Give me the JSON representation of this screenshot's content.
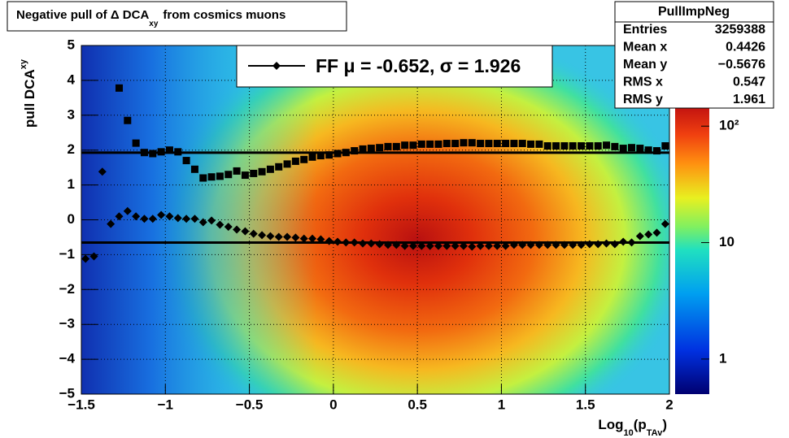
{
  "chart_data": {
    "type": "scatter",
    "title": {
      "text": "Negative pull of Δ DCA",
      "sub": "xy",
      "rest": "from cosmics muons"
    },
    "ylabel": {
      "text": "pull DCA",
      "sub": "xy"
    },
    "xlabel": [
      "Log",
      "10",
      "(p",
      "TAv",
      ")"
    ],
    "xlim": [
      -1.5,
      2
    ],
    "ylim": [
      -5,
      5
    ],
    "zlim": [
      0.5,
      150
    ],
    "zlog": true,
    "grid": true,
    "xticks": [
      {
        "value": -1.5,
        "label": "−1.5"
      },
      {
        "value": -1,
        "label": "−1"
      },
      {
        "value": -0.5,
        "label": "−0.5"
      },
      0,
      0.5,
      1,
      1.5,
      2
    ],
    "yticks": [
      {
        "value": -5,
        "label": "−5"
      },
      {
        "value": -4,
        "label": "−4"
      },
      {
        "value": -3,
        "label": "−3"
      },
      {
        "value": -2,
        "label": "−2"
      },
      {
        "value": -1,
        "label": "−1"
      },
      0,
      1,
      2,
      3,
      4,
      5
    ],
    "zticks": [
      1,
      10,
      {
        "value": 100,
        "label": "10²"
      }
    ],
    "x": [
      -1.475,
      -1.425,
      -1.375,
      -1.325,
      -1.275,
      -1.225,
      -1.175,
      -1.125,
      -1.075,
      -1.025,
      -0.975,
      -0.925,
      -0.875,
      -0.825,
      -0.775,
      -0.725,
      -0.675,
      -0.625,
      -0.575,
      -0.525,
      -0.475,
      -0.425,
      -0.375,
      -0.325,
      -0.275,
      -0.225,
      -0.175,
      -0.125,
      -0.075,
      -0.025,
      0.025,
      0.075,
      0.125,
      0.175,
      0.225,
      0.275,
      0.325,
      0.375,
      0.425,
      0.475,
      0.525,
      0.575,
      0.625,
      0.675,
      0.725,
      0.775,
      0.825,
      0.875,
      0.925,
      0.975,
      1.025,
      1.075,
      1.125,
      1.175,
      1.225,
      1.275,
      1.325,
      1.375,
      1.425,
      1.475,
      1.525,
      1.575,
      1.625,
      1.675,
      1.725,
      1.775,
      1.825,
      1.875,
      1.925,
      1.975
    ],
    "series": [
      {
        "marker": "square",
        "color": "#000000",
        "values": [
          null,
          null,
          null,
          null,
          3.78,
          2.85,
          2.2,
          1.93,
          1.9,
          1.95,
          2.0,
          1.95,
          1.7,
          1.45,
          1.2,
          1.23,
          1.25,
          1.3,
          1.4,
          1.28,
          1.33,
          1.38,
          1.45,
          1.52,
          1.6,
          1.68,
          1.73,
          1.8,
          1.84,
          1.86,
          1.9,
          1.93,
          1.98,
          2.03,
          2.05,
          2.07,
          2.1,
          2.1,
          2.14,
          2.14,
          2.17,
          2.17,
          2.17,
          2.19,
          2.19,
          2.21,
          2.21,
          2.19,
          2.19,
          2.19,
          2.19,
          2.19,
          2.19,
          2.17,
          2.17,
          2.12,
          2.12,
          2.12,
          2.12,
          2.12,
          2.12,
          2.12,
          2.14,
          2.1,
          2.05,
          2.07,
          2.05,
          2.0,
          1.98,
          2.12
        ]
      },
      {
        "name": "FF μ = -0.652, σ =   1.926",
        "marker": "diamond",
        "color": "#000000",
        "values": [
          -1.12,
          -1.05,
          1.38,
          -0.12,
          0.1,
          0.25,
          0.1,
          0.03,
          0.03,
          0.14,
          0.1,
          0.05,
          0.03,
          0.03,
          -0.07,
          -0.02,
          -0.14,
          -0.2,
          -0.28,
          -0.33,
          -0.4,
          -0.44,
          -0.47,
          -0.49,
          -0.49,
          -0.51,
          -0.54,
          -0.54,
          -0.56,
          -0.61,
          -0.63,
          -0.65,
          -0.65,
          -0.68,
          -0.68,
          -0.7,
          -0.72,
          -0.72,
          -0.75,
          -0.75,
          -0.75,
          -0.75,
          -0.75,
          -0.75,
          -0.75,
          -0.75,
          -0.77,
          -0.75,
          -0.75,
          -0.75,
          -0.75,
          -0.72,
          -0.72,
          -0.72,
          -0.72,
          -0.72,
          -0.72,
          -0.72,
          -0.72,
          -0.72,
          -0.7,
          -0.7,
          -0.68,
          -0.7,
          -0.63,
          -0.65,
          -0.47,
          -0.42,
          -0.37,
          -0.12
        ]
      }
    ],
    "hlines": [
      -0.652,
      1.926
    ],
    "stats": {
      "title": "PullImpNeg",
      "rows": [
        [
          "Entries",
          3259388
        ],
        [
          "Mean x",
          0.4426
        ],
        [
          "Mean y",
          "−0.5676"
        ],
        [
          "RMS x",
          0.547
        ],
        [
          "RMS y",
          1.961
        ]
      ]
    }
  }
}
